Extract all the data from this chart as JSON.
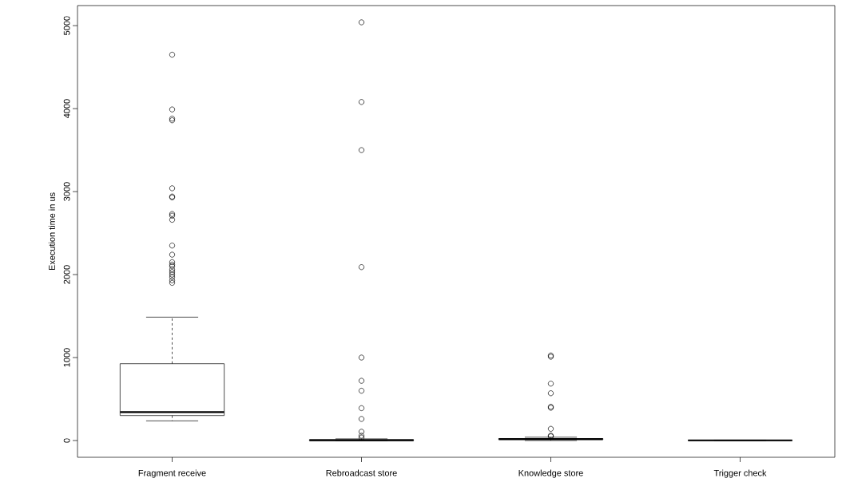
{
  "chart_data": {
    "type": "box",
    "ylabel": "Execution time in us",
    "categories": [
      "Fragment receive",
      "Rebroadcast store",
      "Knowledge store",
      "Trigger check"
    ],
    "ylim": [
      -202,
      5242
    ],
    "yticks": [
      0,
      1000,
      2000,
      3000,
      4000,
      5000
    ],
    "boxes": [
      {
        "low": 237,
        "q1": 301,
        "median": 343,
        "q3": 926,
        "high": 1487,
        "outliers": [
          4650,
          3990,
          3880,
          3860,
          3040,
          2940,
          2930,
          2730,
          2710,
          2660,
          2350,
          2240,
          2150,
          2120,
          2100,
          2060,
          2030,
          2000,
          1970,
          1930,
          1900
        ]
      },
      {
        "low": 0,
        "q1": 0,
        "median": 3,
        "q3": 10,
        "high": 20,
        "outliers": [
          5040,
          4080,
          3500,
          2090,
          1000,
          720,
          600,
          390,
          260,
          106,
          58,
          35
        ]
      },
      {
        "low": 0,
        "q1": 10,
        "median": 17,
        "q3": 24,
        "high": 40,
        "outliers": [
          1025,
          1010,
          686,
          570,
          407,
          395,
          141,
          60,
          50
        ]
      },
      {
        "low": 0,
        "q1": 1,
        "median": 2,
        "q3": 3,
        "high": 5
      }
    ]
  }
}
